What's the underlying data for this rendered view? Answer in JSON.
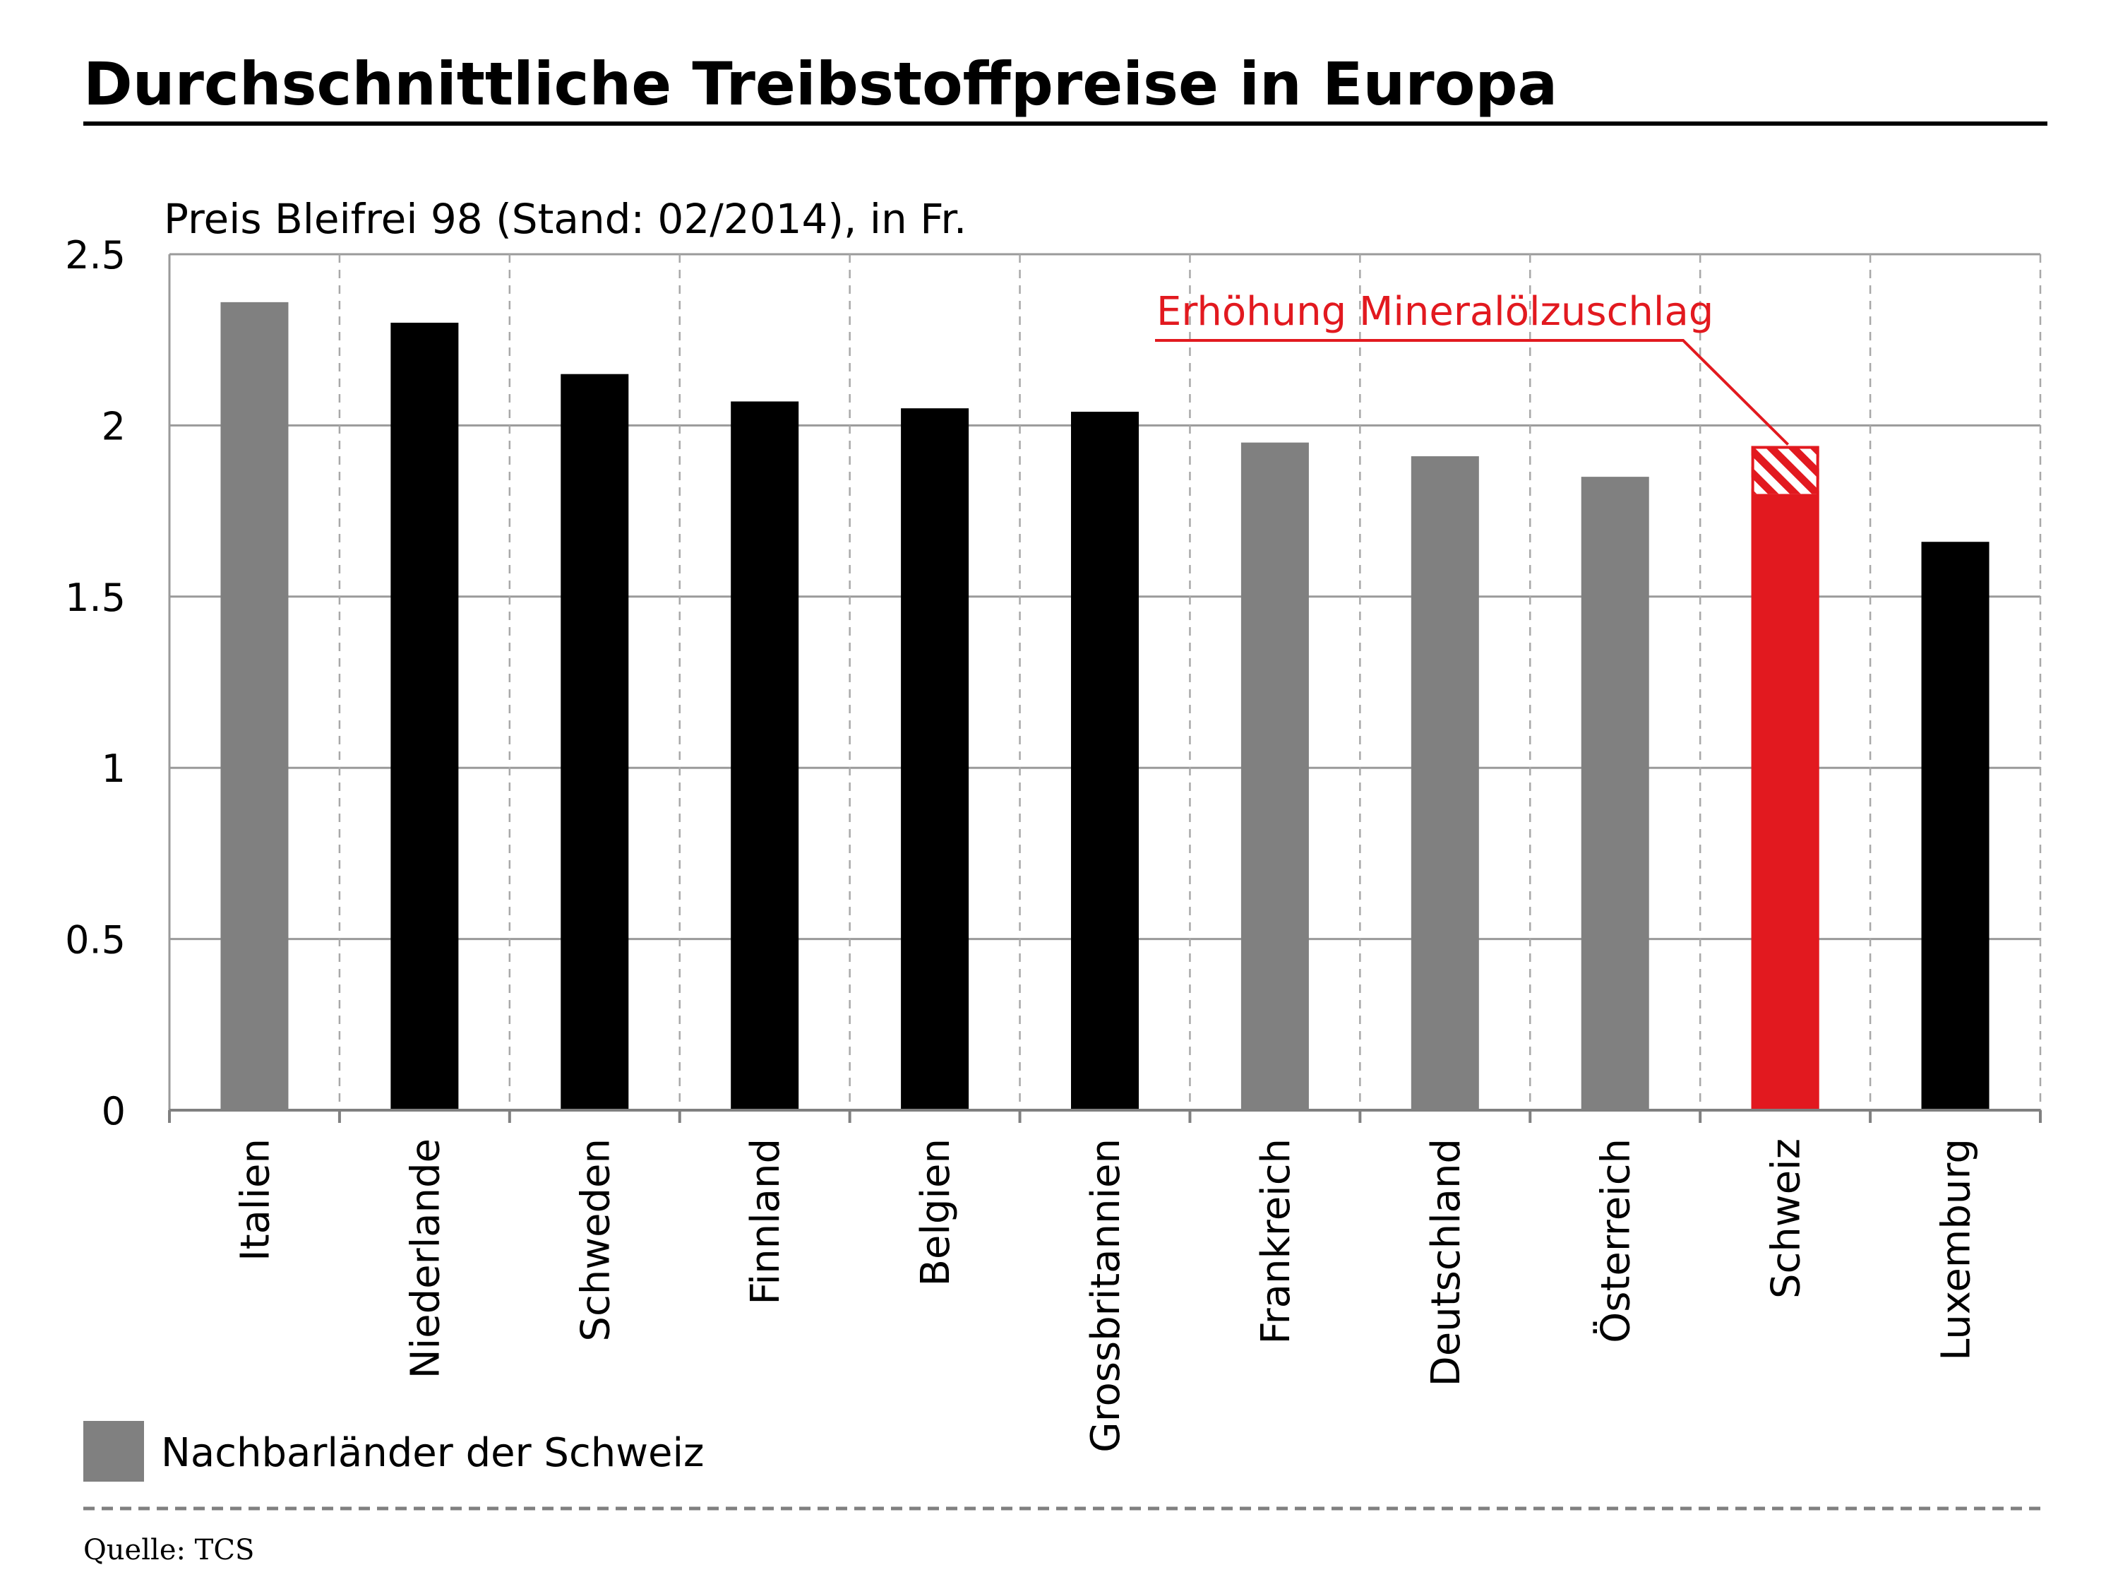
{
  "title": "Durchschnittliche Treibstoffpreise in Europa",
  "subtitle": "Preis Bleifrei 98 (Stand: 02/2014), in Fr.",
  "source": "Quelle: TCS",
  "legend": {
    "label": "Nachbarländer der Schweiz",
    "color": "#808080"
  },
  "annotation": {
    "text": "Erhöhung Mineralölzuschlag",
    "color": "#e2191f"
  },
  "colors": {
    "neighbor": "#808080",
    "other": "#000000",
    "switzerland": "#e2191f"
  },
  "chart_data": {
    "type": "bar",
    "ylim": [
      0,
      2.5
    ],
    "yticks": [
      "0",
      "0.5",
      "1",
      "1.5",
      "2",
      "2.5"
    ],
    "grid": true,
    "legend_position": "bottom-left",
    "categories": [
      "Italien",
      "Niederlande",
      "Schweden",
      "Finnland",
      "Belgien",
      "Grossbritannien",
      "Frankreich",
      "Deutschland",
      "Österreich",
      "Schweiz",
      "Luxemburg"
    ],
    "values": [
      2.36,
      2.3,
      2.15,
      2.07,
      2.05,
      2.04,
      1.95,
      1.91,
      1.85,
      1.8,
      1.66
    ],
    "neighbor": [
      true,
      false,
      false,
      false,
      false,
      false,
      true,
      true,
      true,
      false,
      false
    ],
    "increase": {
      "category": "Schweiz",
      "base": 1.8,
      "top": 1.94
    }
  }
}
